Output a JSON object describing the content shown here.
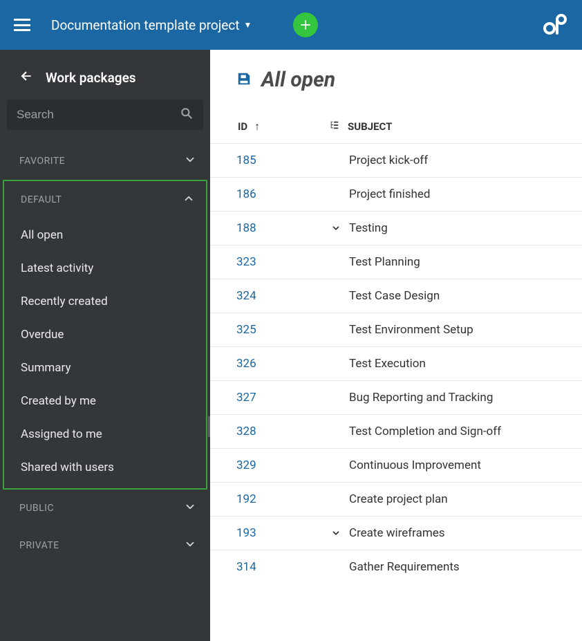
{
  "colors": {
    "topbar": "#1a67a3",
    "add_button": "#35c53f",
    "sidebar_bg": "#333739",
    "highlight_border": "#3fa03f",
    "link": "#1a67a3",
    "title_text": "#4b4b4b",
    "row_border": "#e6e6e6"
  },
  "topbar": {
    "project_title": "Documentation template project"
  },
  "sidebar": {
    "title": "Work packages",
    "search_placeholder": "Search",
    "sections": {
      "favorite": {
        "label": "FAVORITE"
      },
      "default": {
        "label": "DEFAULT",
        "items": [
          "All open",
          "Latest activity",
          "Recently created",
          "Overdue",
          "Summary",
          "Created by me",
          "Assigned to me",
          "Shared with users"
        ]
      },
      "public": {
        "label": "PUBLIC"
      },
      "private": {
        "label": "PRIVATE"
      }
    }
  },
  "main": {
    "page_title": "All open",
    "columns": {
      "id": "ID",
      "subject": "SUBJECT"
    },
    "rows": [
      {
        "id": "185",
        "subject": "Project kick-off",
        "indent": 0,
        "expandable": false
      },
      {
        "id": "186",
        "subject": "Project finished",
        "indent": 0,
        "expandable": false
      },
      {
        "id": "188",
        "subject": "Testing",
        "indent": 0,
        "expandable": true
      },
      {
        "id": "323",
        "subject": "Test Planning",
        "indent": 1,
        "expandable": false
      },
      {
        "id": "324",
        "subject": "Test Case Design",
        "indent": 1,
        "expandable": false
      },
      {
        "id": "325",
        "subject": "Test Environment Setup",
        "indent": 1,
        "expandable": false
      },
      {
        "id": "326",
        "subject": "Test Execution",
        "indent": 1,
        "expandable": false
      },
      {
        "id": "327",
        "subject": "Bug Reporting and Tracking",
        "indent": 1,
        "expandable": false
      },
      {
        "id": "328",
        "subject": "Test Completion and Sign-off",
        "indent": 1,
        "expandable": false
      },
      {
        "id": "329",
        "subject": "Continuous Improvement",
        "indent": 1,
        "expandable": false
      },
      {
        "id": "192",
        "subject": "Create project plan",
        "indent": 0,
        "expandable": false
      },
      {
        "id": "193",
        "subject": "Create wireframes",
        "indent": 0,
        "expandable": true
      },
      {
        "id": "314",
        "subject": "Gather Requirements",
        "indent": 1,
        "expandable": false
      }
    ]
  }
}
